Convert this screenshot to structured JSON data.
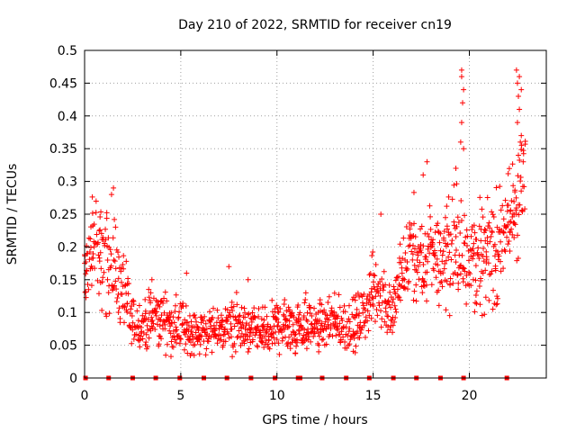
{
  "chart_data": {
    "type": "scatter",
    "title": "Day 210 of 2022, SRMTID for receiver cn19",
    "xlabel": "GPS time / hours",
    "ylabel": "SRMTID / TECUs",
    "xlim": [
      0,
      24
    ],
    "ylim": [
      0,
      0.5
    ],
    "grid": true,
    "marker": "+",
    "color": "#ff0000",
    "x_ticks": [
      "0",
      "5",
      "10",
      "15",
      "20"
    ],
    "x_tick_values": [
      0,
      5,
      10,
      15,
      20
    ],
    "y_ticks": [
      "0",
      "0.05",
      "0.1",
      "0.15",
      "0.2",
      "0.25",
      "0.3",
      "0.35",
      "0.4",
      "0.45",
      "0.5"
    ],
    "y_tick_values": [
      0,
      0.05,
      0.1,
      0.15,
      0.2,
      0.25,
      0.3,
      0.35,
      0.4,
      0.45,
      0.5
    ],
    "series": [
      {
        "name": "SRMTID",
        "trend": [
          [
            0.0,
            0.16,
            0.05
          ],
          [
            0.5,
            0.2,
            0.06
          ],
          [
            1.0,
            0.18,
            0.06
          ],
          [
            1.5,
            0.17,
            0.06
          ],
          [
            2.0,
            0.13,
            0.04
          ],
          [
            2.5,
            0.08,
            0.03
          ],
          [
            3.0,
            0.08,
            0.03
          ],
          [
            3.5,
            0.09,
            0.03
          ],
          [
            4.0,
            0.09,
            0.03
          ],
          [
            4.5,
            0.08,
            0.03
          ],
          [
            5.0,
            0.08,
            0.03
          ],
          [
            5.5,
            0.07,
            0.025
          ],
          [
            6.0,
            0.07,
            0.025
          ],
          [
            6.5,
            0.07,
            0.025
          ],
          [
            7.0,
            0.07,
            0.025
          ],
          [
            7.5,
            0.08,
            0.03
          ],
          [
            8.0,
            0.08,
            0.03
          ],
          [
            8.5,
            0.07,
            0.025
          ],
          [
            9.0,
            0.07,
            0.025
          ],
          [
            9.5,
            0.07,
            0.03
          ],
          [
            10.0,
            0.08,
            0.03
          ],
          [
            10.5,
            0.08,
            0.03
          ],
          [
            11.0,
            0.08,
            0.03
          ],
          [
            11.5,
            0.08,
            0.03
          ],
          [
            12.0,
            0.08,
            0.03
          ],
          [
            12.5,
            0.08,
            0.025
          ],
          [
            13.0,
            0.08,
            0.03
          ],
          [
            13.5,
            0.08,
            0.03
          ],
          [
            14.0,
            0.08,
            0.03
          ],
          [
            14.5,
            0.09,
            0.03
          ],
          [
            15.0,
            0.14,
            0.04
          ],
          [
            15.5,
            0.12,
            0.04
          ],
          [
            16.0,
            0.1,
            0.03
          ],
          [
            16.5,
            0.15,
            0.05
          ],
          [
            17.0,
            0.2,
            0.06
          ],
          [
            17.5,
            0.16,
            0.05
          ],
          [
            18.0,
            0.2,
            0.06
          ],
          [
            18.5,
            0.18,
            0.05
          ],
          [
            19.0,
            0.2,
            0.06
          ],
          [
            19.5,
            0.2,
            0.07
          ],
          [
            20.0,
            0.2,
            0.07
          ],
          [
            20.5,
            0.18,
            0.06
          ],
          [
            21.0,
            0.19,
            0.06
          ],
          [
            21.5,
            0.2,
            0.06
          ],
          [
            22.0,
            0.23,
            0.06
          ],
          [
            22.5,
            0.27,
            0.08
          ],
          [
            22.9,
            0.3,
            0.06
          ]
        ],
        "outliers": [
          [
            19.6,
            0.47
          ],
          [
            19.6,
            0.46
          ],
          [
            19.7,
            0.44
          ],
          [
            19.65,
            0.42
          ],
          [
            19.6,
            0.39
          ],
          [
            19.55,
            0.36
          ],
          [
            19.7,
            0.35
          ],
          [
            22.45,
            0.47
          ],
          [
            22.6,
            0.46
          ],
          [
            22.5,
            0.45
          ],
          [
            22.7,
            0.44
          ],
          [
            22.55,
            0.43
          ],
          [
            22.6,
            0.41
          ],
          [
            22.5,
            0.39
          ],
          [
            22.7,
            0.37
          ],
          [
            22.65,
            0.36
          ],
          [
            22.55,
            0.34
          ],
          [
            22.8,
            0.33
          ],
          [
            17.8,
            0.33
          ],
          [
            17.6,
            0.31
          ],
          [
            19.3,
            0.32
          ],
          [
            1.5,
            0.29
          ],
          [
            1.4,
            0.28
          ],
          [
            0.6,
            0.27
          ],
          [
            15.4,
            0.25
          ],
          [
            7.5,
            0.17
          ],
          [
            8.5,
            0.15
          ],
          [
            5.3,
            0.16
          ],
          [
            3.5,
            0.15
          ],
          [
            11.5,
            0.13
          ]
        ],
        "zero_points": [
          0.05,
          1.25,
          2.5,
          3.7,
          4.95,
          6.2,
          7.4,
          8.65,
          9.9,
          11.1,
          11.2,
          12.35,
          13.6,
          14.8,
          16.05,
          17.25,
          18.5,
          19.7,
          21.95
        ]
      }
    ]
  }
}
